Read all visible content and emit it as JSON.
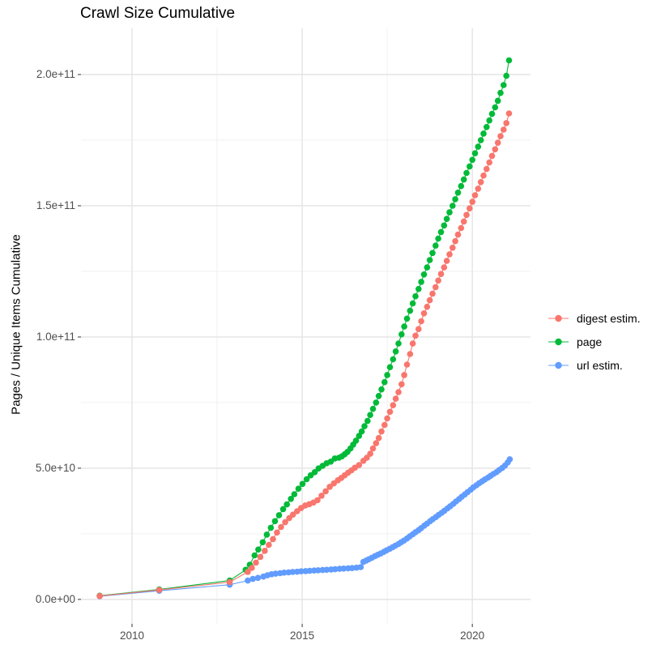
{
  "title": "Crawl Size Cumulative",
  "chart_data": {
    "type": "scatter",
    "title": "Crawl Size Cumulative",
    "xlabel": "",
    "ylabel": "Pages / Unique Items Cumulative",
    "grid": true,
    "legend_position": "right",
    "y_unit": "billions (1e9) of pages / unique items",
    "x_unit": "year",
    "x_domain": [
      2008.5,
      2021.71
    ],
    "y_domain": [
      -9.3,
      217.6
    ],
    "x_ticks": [
      {
        "value": 2010,
        "label": "2010"
      },
      {
        "value": 2015,
        "label": "2015"
      },
      {
        "value": 2020,
        "label": "2020"
      }
    ],
    "y_ticks": [
      {
        "value": 0,
        "label": "0.0e+00"
      },
      {
        "value": 50,
        "label": "5.0e+10"
      },
      {
        "value": 100,
        "label": "1.0e+11"
      },
      {
        "value": 150,
        "label": "1.5e+11"
      },
      {
        "value": 200,
        "label": "2.0e+11"
      }
    ],
    "x_minor_gridlines": [
      2012.5,
      2017.5
    ],
    "y_minor_gridlines": [
      25,
      75,
      125,
      175
    ],
    "draw_order": [
      1,
      2,
      0
    ],
    "series": [
      {
        "name": "digest estim.",
        "color": "#F8766D",
        "points": [
          [
            2009.05,
            1.3
          ],
          [
            2010.8,
            3.6
          ],
          [
            2012.87,
            6.6
          ],
          [
            2013.4,
            10.5
          ],
          [
            2013.52,
            12.0
          ],
          [
            2013.64,
            14.0
          ],
          [
            2013.77,
            16.2
          ],
          [
            2013.9,
            18.5
          ],
          [
            2014.02,
            20.8
          ],
          [
            2014.14,
            23.0
          ],
          [
            2014.26,
            25.5
          ],
          [
            2014.38,
            27.6
          ],
          [
            2014.5,
            29.4
          ],
          [
            2014.62,
            31.0
          ],
          [
            2014.73,
            32.3
          ],
          [
            2014.85,
            33.6
          ],
          [
            2014.97,
            34.8
          ],
          [
            2015.09,
            35.8
          ],
          [
            2015.21,
            36.3
          ],
          [
            2015.33,
            36.9
          ],
          [
            2015.45,
            37.8
          ],
          [
            2015.57,
            39.5
          ],
          [
            2015.69,
            41.2
          ],
          [
            2015.81,
            42.9
          ],
          [
            2015.93,
            44.2
          ],
          [
            2016.05,
            45.4
          ],
          [
            2016.15,
            46.3
          ],
          [
            2016.25,
            47.3
          ],
          [
            2016.35,
            48.3
          ],
          [
            2016.45,
            49.2
          ],
          [
            2016.55,
            50.2
          ],
          [
            2016.67,
            51.2
          ],
          [
            2016.8,
            52.8
          ],
          [
            2016.9,
            54.0
          ],
          [
            2017.0,
            55.5
          ],
          [
            2017.08,
            57.5
          ],
          [
            2017.17,
            59.5
          ],
          [
            2017.25,
            61.5
          ],
          [
            2017.33,
            64.0
          ],
          [
            2017.42,
            66.5
          ],
          [
            2017.5,
            69.0
          ],
          [
            2017.58,
            71.5
          ],
          [
            2017.67,
            74.0
          ],
          [
            2017.75,
            76.5
          ],
          [
            2017.83,
            79.0
          ],
          [
            2017.92,
            82.0
          ],
          [
            2018.0,
            85.5
          ],
          [
            2018.08,
            89.5
          ],
          [
            2018.17,
            93.5
          ],
          [
            2018.25,
            97.5
          ],
          [
            2018.33,
            100.5
          ],
          [
            2018.42,
            103.0
          ],
          [
            2018.5,
            106.0
          ],
          [
            2018.58,
            109.0
          ],
          [
            2018.67,
            111.5
          ],
          [
            2018.75,
            114.0
          ],
          [
            2018.83,
            116.5
          ],
          [
            2018.92,
            119.0
          ],
          [
            2019.0,
            121.5
          ],
          [
            2019.08,
            124.0
          ],
          [
            2019.17,
            126.5
          ],
          [
            2019.25,
            129.0
          ],
          [
            2019.33,
            131.5
          ],
          [
            2019.42,
            134.0
          ],
          [
            2019.5,
            136.5
          ],
          [
            2019.58,
            139.0
          ],
          [
            2019.67,
            141.5
          ],
          [
            2019.75,
            144.0
          ],
          [
            2019.83,
            146.5
          ],
          [
            2019.92,
            149.0
          ],
          [
            2020.0,
            151.5
          ],
          [
            2020.08,
            154.0
          ],
          [
            2020.17,
            156.5
          ],
          [
            2020.25,
            159.0
          ],
          [
            2020.33,
            161.5
          ],
          [
            2020.42,
            164.0
          ],
          [
            2020.5,
            166.5
          ],
          [
            2020.58,
            169.0
          ],
          [
            2020.67,
            171.5
          ],
          [
            2020.75,
            174.0
          ],
          [
            2020.83,
            176.5
          ],
          [
            2020.92,
            179.0
          ],
          [
            2021.0,
            181.5
          ],
          [
            2021.08,
            185.2
          ]
        ]
      },
      {
        "name": "page",
        "color": "#00BA38",
        "points": [
          [
            2009.05,
            1.4
          ],
          [
            2010.8,
            3.8
          ],
          [
            2012.87,
            7.2
          ],
          [
            2013.34,
            11.3
          ],
          [
            2013.46,
            13.2
          ],
          [
            2013.6,
            16.8
          ],
          [
            2013.71,
            19.0
          ],
          [
            2013.84,
            21.8
          ],
          [
            2013.96,
            24.7
          ],
          [
            2014.08,
            27.3
          ],
          [
            2014.2,
            29.8
          ],
          [
            2014.32,
            32.1
          ],
          [
            2014.44,
            34.4
          ],
          [
            2014.55,
            36.2
          ],
          [
            2014.67,
            38.3
          ],
          [
            2014.77,
            40.1
          ],
          [
            2014.89,
            42.2
          ],
          [
            2015.01,
            44.0
          ],
          [
            2015.13,
            45.8
          ],
          [
            2015.25,
            47.3
          ],
          [
            2015.37,
            48.5
          ],
          [
            2015.48,
            49.9
          ],
          [
            2015.6,
            50.9
          ],
          [
            2015.72,
            51.9
          ],
          [
            2015.84,
            52.5
          ],
          [
            2015.96,
            53.7
          ],
          [
            2016.08,
            54.0
          ],
          [
            2016.17,
            54.5
          ],
          [
            2016.25,
            55.3
          ],
          [
            2016.33,
            56.2
          ],
          [
            2016.42,
            57.5
          ],
          [
            2016.5,
            59.0
          ],
          [
            2016.58,
            60.5
          ],
          [
            2016.67,
            62.3
          ],
          [
            2016.75,
            64.0
          ],
          [
            2016.83,
            66.0
          ],
          [
            2016.92,
            68.0
          ],
          [
            2017.0,
            70.3
          ],
          [
            2017.08,
            72.6
          ],
          [
            2017.17,
            75.0
          ],
          [
            2017.25,
            77.5
          ],
          [
            2017.33,
            80.0
          ],
          [
            2017.42,
            82.8
          ],
          [
            2017.5,
            85.5
          ],
          [
            2017.58,
            88.5
          ],
          [
            2017.67,
            91.5
          ],
          [
            2017.75,
            94.5
          ],
          [
            2017.83,
            97.5
          ],
          [
            2017.92,
            101.0
          ],
          [
            2018.0,
            104.0
          ],
          [
            2018.08,
            107.0
          ],
          [
            2018.17,
            110.0
          ],
          [
            2018.25,
            112.8
          ],
          [
            2018.33,
            115.5
          ],
          [
            2018.42,
            118.3
          ],
          [
            2018.5,
            121.0
          ],
          [
            2018.58,
            123.8
          ],
          [
            2018.67,
            126.5
          ],
          [
            2018.75,
            129.3
          ],
          [
            2018.83,
            132.0
          ],
          [
            2018.92,
            134.8
          ],
          [
            2019.0,
            137.5
          ],
          [
            2019.08,
            140.0
          ],
          [
            2019.17,
            142.5
          ],
          [
            2019.25,
            145.0
          ],
          [
            2019.33,
            147.5
          ],
          [
            2019.42,
            150.0
          ],
          [
            2019.5,
            152.5
          ],
          [
            2019.58,
            155.0
          ],
          [
            2019.67,
            157.5
          ],
          [
            2019.75,
            160.0
          ],
          [
            2019.83,
            162.5
          ],
          [
            2019.92,
            165.0
          ],
          [
            2020.0,
            167.5
          ],
          [
            2020.08,
            170.0
          ],
          [
            2020.17,
            172.5
          ],
          [
            2020.25,
            175.0
          ],
          [
            2020.33,
            177.5
          ],
          [
            2020.42,
            180.0
          ],
          [
            2020.5,
            182.5
          ],
          [
            2020.58,
            185.0
          ],
          [
            2020.67,
            187.5
          ],
          [
            2020.75,
            190.0
          ],
          [
            2020.83,
            193.0
          ],
          [
            2020.92,
            196.0
          ],
          [
            2021.0,
            199.5
          ],
          [
            2021.08,
            205.4
          ]
        ]
      },
      {
        "name": "url estim.",
        "color": "#619CFF",
        "points": [
          [
            2009.05,
            1.2
          ],
          [
            2010.8,
            3.3
          ],
          [
            2012.87,
            5.6
          ],
          [
            2013.4,
            7.2
          ],
          [
            2013.55,
            7.8
          ],
          [
            2013.7,
            8.2
          ],
          [
            2013.86,
            8.7
          ],
          [
            2013.98,
            9.2
          ],
          [
            2014.1,
            9.6
          ],
          [
            2014.22,
            9.8
          ],
          [
            2014.35,
            10.0
          ],
          [
            2014.47,
            10.2
          ],
          [
            2014.6,
            10.3
          ],
          [
            2014.72,
            10.45
          ],
          [
            2014.85,
            10.55
          ],
          [
            2014.97,
            10.7
          ],
          [
            2015.1,
            10.8
          ],
          [
            2015.22,
            10.9
          ],
          [
            2015.35,
            11.0
          ],
          [
            2015.47,
            11.1
          ],
          [
            2015.6,
            11.2
          ],
          [
            2015.72,
            11.3
          ],
          [
            2015.85,
            11.4
          ],
          [
            2015.97,
            11.5
          ],
          [
            2016.1,
            11.65
          ],
          [
            2016.22,
            11.75
          ],
          [
            2016.35,
            11.85
          ],
          [
            2016.47,
            11.95
          ],
          [
            2016.6,
            12.1
          ],
          [
            2016.72,
            12.3
          ],
          [
            2016.8,
            14.3
          ],
          [
            2016.88,
            14.8
          ],
          [
            2016.96,
            15.3
          ],
          [
            2017.05,
            15.9
          ],
          [
            2017.14,
            16.5
          ],
          [
            2017.22,
            17.0
          ],
          [
            2017.31,
            17.5
          ],
          [
            2017.4,
            18.1
          ],
          [
            2017.48,
            18.7
          ],
          [
            2017.57,
            19.3
          ],
          [
            2017.66,
            19.9
          ],
          [
            2017.74,
            20.5
          ],
          [
            2017.83,
            21.1
          ],
          [
            2017.91,
            21.8
          ],
          [
            2017.99,
            22.4
          ],
          [
            2018.08,
            23.2
          ],
          [
            2018.16,
            24.0
          ],
          [
            2018.25,
            24.8
          ],
          [
            2018.33,
            25.6
          ],
          [
            2018.42,
            26.4
          ],
          [
            2018.5,
            27.2
          ],
          [
            2018.59,
            28.1
          ],
          [
            2018.67,
            28.9
          ],
          [
            2018.76,
            29.8
          ],
          [
            2018.84,
            30.6
          ],
          [
            2018.93,
            31.4
          ],
          [
            2019.01,
            32.2
          ],
          [
            2019.1,
            33.0
          ],
          [
            2019.18,
            33.8
          ],
          [
            2019.27,
            34.7
          ],
          [
            2019.35,
            35.5
          ],
          [
            2019.44,
            36.4
          ],
          [
            2019.52,
            37.3
          ],
          [
            2019.61,
            38.2
          ],
          [
            2019.69,
            39.1
          ],
          [
            2019.78,
            40.0
          ],
          [
            2019.86,
            40.9
          ],
          [
            2019.95,
            41.8
          ],
          [
            2020.03,
            42.7
          ],
          [
            2020.12,
            43.5
          ],
          [
            2020.2,
            44.3
          ],
          [
            2020.29,
            45.0
          ],
          [
            2020.37,
            45.7
          ],
          [
            2020.46,
            46.4
          ],
          [
            2020.54,
            47.1
          ],
          [
            2020.62,
            47.8
          ],
          [
            2020.71,
            48.5
          ],
          [
            2020.79,
            49.3
          ],
          [
            2020.88,
            50.1
          ],
          [
            2020.96,
            51.0
          ],
          [
            2021.04,
            52.2
          ],
          [
            2021.1,
            53.4
          ]
        ]
      }
    ]
  },
  "style": {
    "major_grid_color": "#E4E4E4",
    "minor_grid_color": "#F0F0F0",
    "tick_mark_color": "#333333",
    "tick_label_color": "#4d4d4d",
    "point_radius": 3.8
  }
}
